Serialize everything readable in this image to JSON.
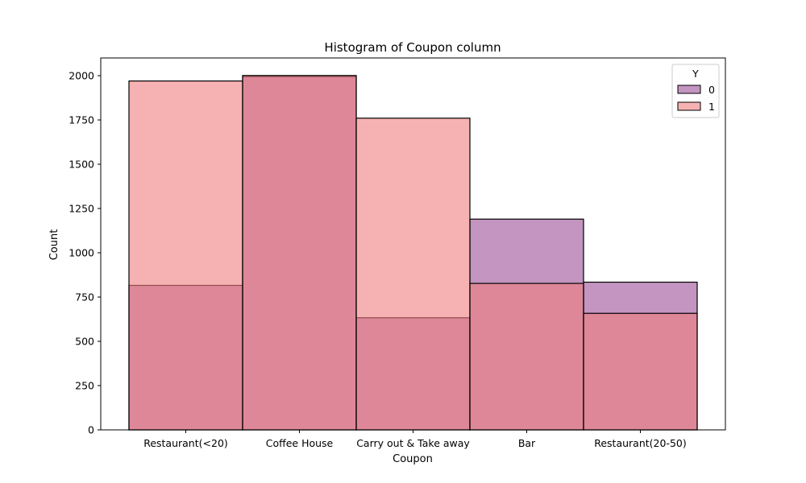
{
  "chart_data": {
    "type": "bar",
    "title": "Histogram of Coupon column",
    "xlabel": "Coupon",
    "ylabel": "Count",
    "categories": [
      "Restaurant(<20)",
      "Coffee House",
      "Carry out & Take away",
      "Bar",
      "Restaurant(20-50)"
    ],
    "series": [
      {
        "name": "0",
        "values": [
          816,
          1995,
          633,
          1190,
          834
        ],
        "color": "#9b4f96",
        "opacity": 0.6
      },
      {
        "name": "1",
        "values": [
          1970,
          2001,
          1760,
          827,
          658
        ],
        "color": "#f07f7f",
        "opacity": 0.6
      }
    ],
    "ylim": [
      0,
      2100
    ],
    "yticks": [
      0,
      250,
      500,
      750,
      1000,
      1250,
      1500,
      1750,
      2000
    ],
    "grid": false,
    "legend": {
      "title": "Y",
      "placement": "top-right"
    }
  }
}
